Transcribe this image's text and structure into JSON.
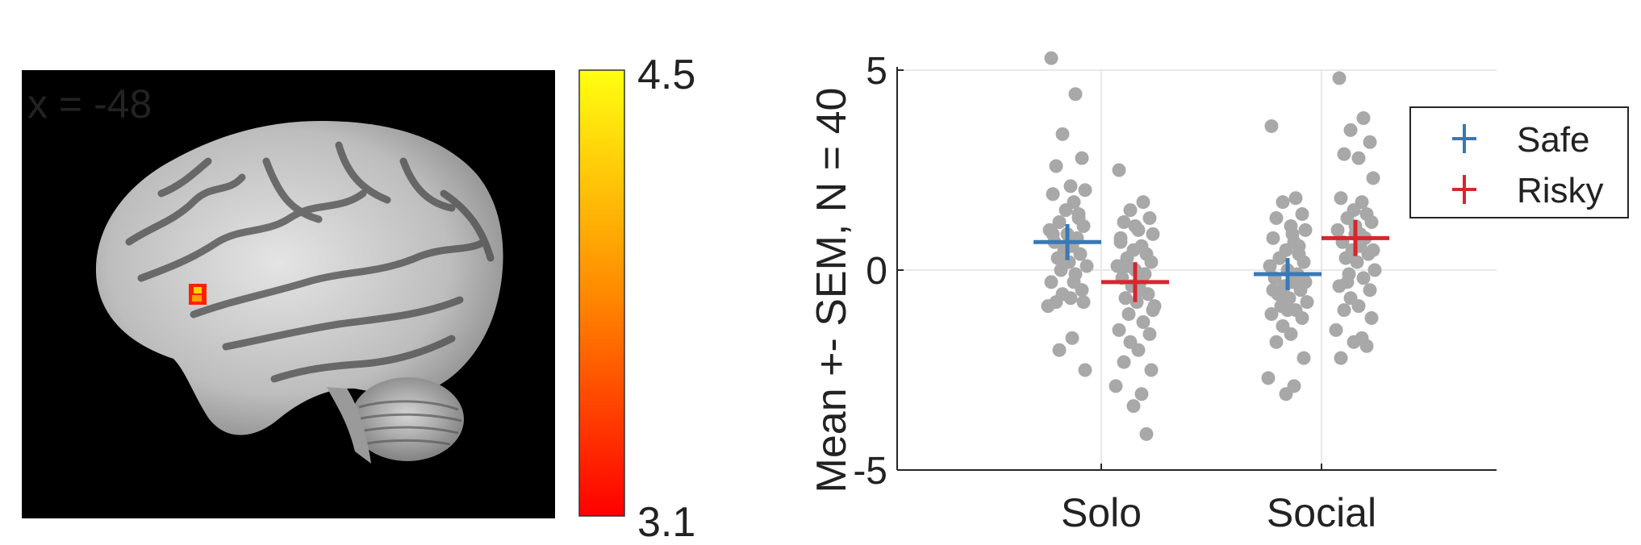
{
  "brain_panel": {
    "slice_label": "x = -48",
    "colorbar": {
      "max_label": "4.5",
      "min_label": "3.1",
      "colors": [
        "#ff0000",
        "#ff8000",
        "#ffff00"
      ]
    },
    "background_color": "#000000"
  },
  "chart_data": {
    "type": "scatter",
    "categories": [
      "Solo",
      "Social"
    ],
    "ylabel": "Mean +- SEM, N = 40",
    "xlabel": "",
    "ylim": [
      -5,
      5
    ],
    "yticks": [
      -5,
      0,
      5
    ],
    "grid": true,
    "legend_position": "top-right",
    "series": [
      {
        "name": "Safe",
        "color": "#3a78b6",
        "mean": [
          0.7,
          -0.1
        ],
        "sem": [
          0.45,
          0.4
        ],
        "points": [
          [
            5.3,
            4.4,
            3.4,
            2.8,
            2.6,
            2.1,
            2.0,
            1.9,
            1.7,
            1.5,
            1.3,
            1.2,
            1.1,
            1.0,
            0.9,
            0.8,
            0.7,
            0.6,
            0.5,
            0.4,
            0.3,
            0.2,
            0.1,
            0.0,
            -0.1,
            -0.3,
            -0.5,
            -0.6,
            -0.7,
            -0.8,
            -0.8,
            -0.9,
            -0.3,
            0.6,
            1.4,
            0.9,
            -1.7,
            -2.0,
            -2.5,
            0.2
          ],
          [
            3.6,
            1.8,
            1.7,
            1.4,
            1.3,
            1.1,
            1.0,
            0.8,
            0.7,
            0.5,
            0.4,
            0.3,
            0.2,
            0.1,
            0.0,
            -0.1,
            -0.2,
            -0.3,
            -0.4,
            -0.5,
            -0.6,
            -0.7,
            -0.8,
            -0.9,
            -1.0,
            -1.1,
            -1.2,
            -1.4,
            -1.6,
            -1.8,
            -2.2,
            -2.7,
            -2.9,
            -3.1,
            0.6,
            -0.5,
            0.9,
            0.3,
            -0.3,
            -1.0
          ]
        ]
      },
      {
        "name": "Risky",
        "color": "#d7262e",
        "mean": [
          -0.3,
          0.8
        ],
        "sem": [
          0.5,
          0.45
        ],
        "points": [
          [
            2.5,
            1.7,
            1.5,
            1.3,
            1.2,
            1.0,
            0.9,
            0.8,
            0.6,
            0.5,
            0.4,
            0.3,
            0.2,
            0.1,
            0.0,
            -0.1,
            -0.2,
            -0.3,
            -0.4,
            -0.6,
            -0.7,
            -0.8,
            -0.9,
            -1.1,
            -1.3,
            -1.5,
            -1.6,
            -1.8,
            -2.0,
            -2.3,
            -2.5,
            -2.9,
            -3.1,
            -3.4,
            -4.1,
            0.7,
            -0.5,
            0.1,
            -1.0,
            1.1
          ],
          [
            4.8,
            3.8,
            3.5,
            3.2,
            2.9,
            2.8,
            2.3,
            1.8,
            1.7,
            1.5,
            1.4,
            1.3,
            1.2,
            1.0,
            0.9,
            0.8,
            0.7,
            0.6,
            0.5,
            0.4,
            0.3,
            0.2,
            0.0,
            -0.1,
            -0.2,
            -0.4,
            -0.5,
            -0.7,
            -0.9,
            -1.0,
            -1.2,
            -1.5,
            -1.7,
            -1.8,
            -1.9,
            -2.2,
            0.9,
            -0.3,
            0.5,
            1.1
          ]
        ]
      }
    ]
  }
}
